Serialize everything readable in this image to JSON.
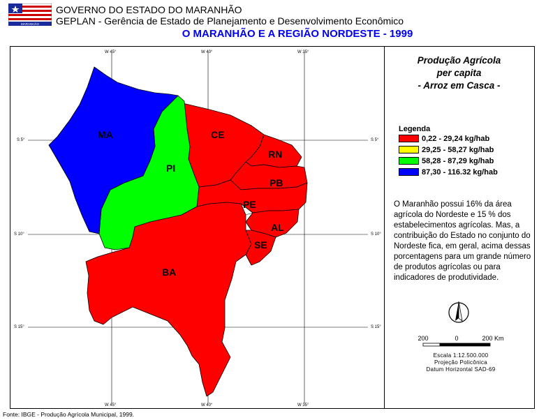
{
  "header": {
    "org_line1": "GOVERNO DO ESTADO DO MARANHÃO",
    "org_line2": "GEPLAN - Gerência de Estado de Planejamento e Desenvolvimento Econômico",
    "map_title": "O MARANHÃO E A REGIÃO NORDESTE - 1999"
  },
  "panel": {
    "title_lines": [
      "Produção Agrícola",
      "per capita",
      "- Arroz em Casca -"
    ]
  },
  "legend": {
    "title": "Legenda",
    "items": [
      {
        "label": "0,22 - 29,24 kg/hab",
        "color": "#ff0000"
      },
      {
        "label": "29,25 - 58,27 kg/hab",
        "color": "#ffff00"
      },
      {
        "label": "58,28 - 87,29 kg/hab",
        "color": "#00ff00"
      },
      {
        "label": "87,30 - 116.32 kg/hab",
        "color": "#0000ff"
      }
    ]
  },
  "description": "O Maranhão possui 16% da área agrícola do Nordeste e 15 % dos estabelecimentos agrícolas. Mas, a contribuição do Estado no conjunto do Nordeste fica, em geral, acima dessas porcentagens para um grande número de produtos agrícolas ou para indicadores de produtividade.",
  "scale": {
    "left": "200",
    "middle": "0",
    "right": "200 Km",
    "line1": "Escala 1:12.500.000",
    "line2": "Projeção Policônica",
    "line3": "Datum Horizontal SAD-69"
  },
  "states": [
    {
      "abbr": "MA",
      "color": "#0000ff"
    },
    {
      "abbr": "PI",
      "color": "#00ff00"
    },
    {
      "abbr": "CE",
      "color": "#ff0000"
    },
    {
      "abbr": "RN",
      "color": "#ff0000"
    },
    {
      "abbr": "PB",
      "color": "#ff0000"
    },
    {
      "abbr": "PE",
      "color": "#ff0000"
    },
    {
      "abbr": "AL",
      "color": "#ff0000"
    },
    {
      "abbr": "SE",
      "color": "#ff0000"
    },
    {
      "abbr": "BA",
      "color": "#ff0000"
    }
  ],
  "graticule": {
    "lon_top": [
      "W 45°",
      "W 40°",
      "W 35°"
    ],
    "lon_bottom": [
      "W 45°",
      "W 40°",
      "W 35°"
    ],
    "lat_left": [
      "S 5°",
      "S 10°",
      "S 15°"
    ],
    "lat_right": [
      "S 5°",
      "S 10°",
      "S 15°"
    ]
  },
  "source": "Fonte: IBGE - Produção Agrícola Municipal, 1999."
}
